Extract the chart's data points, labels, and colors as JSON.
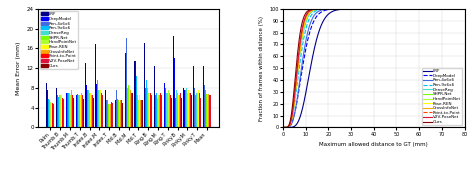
{
  "bar_categories": [
    "Palm",
    "Thumb.B",
    "Thumb.M",
    "Thumb.T",
    "Index.B",
    "Index.M",
    "Index.T",
    "Mid.B",
    "Mid.M",
    "Mid.T",
    "Ring.B",
    "Ring.M",
    "Ring.T",
    "Pinky.B",
    "Pinky.M",
    "Pinky.T",
    "Mean"
  ],
  "bar_methods": [
    "LRF",
    "DeepModel",
    "Ren-4x6x6",
    "Ren-9x6x6",
    "DenseReg",
    "SHPR-Net",
    "HandPointNet",
    "Pose-REN",
    "CrossInfoNet",
    "Point-to-Point",
    "V2V-PoseNet",
    "Ours"
  ],
  "bar_colors": [
    "#00008B",
    "#0000FF",
    "#4169E1",
    "#00BFFF",
    "#40E0D0",
    "#7CFC00",
    "#ADFF2F",
    "#FFFF00",
    "#FFA500",
    "#FF0000",
    "#DC143C",
    "#8B0000"
  ],
  "bar_data": [
    [
      9.0,
      7.5,
      6.5,
      5.8,
      5.5,
      5.5,
      5.2,
      5.0,
      5.0,
      5.0,
      4.8,
      4.5
    ],
    [
      8.0,
      6.8,
      6.5,
      6.2,
      6.5,
      6.5,
      6.5,
      6.5,
      6.0,
      6.0,
      5.8,
      5.5
    ],
    [
      9.5,
      7.0,
      7.0,
      7.0,
      7.0,
      7.0,
      6.5,
      7.0,
      7.5,
      6.5,
      6.5,
      6.0
    ],
    [
      9.0,
      6.5,
      6.8,
      6.5,
      6.5,
      6.5,
      6.5,
      6.5,
      7.0,
      6.0,
      6.5,
      5.8
    ],
    [
      13.0,
      8.5,
      9.0,
      7.5,
      7.5,
      7.0,
      6.5,
      7.0,
      6.5,
      6.5,
      6.5,
      6.0
    ],
    [
      16.8,
      8.8,
      14.8,
      9.5,
      7.5,
      7.0,
      7.5,
      7.5,
      7.0,
      7.0,
      6.5,
      6.0
    ],
    [
      7.5,
      5.5,
      5.5,
      5.5,
      5.0,
      4.8,
      4.8,
      5.0,
      4.8,
      5.2,
      5.0,
      5.0
    ],
    [
      8.0,
      5.5,
      7.5,
      5.8,
      5.5,
      5.5,
      5.2,
      5.5,
      5.5,
      5.5,
      5.5,
      5.0
    ],
    [
      18.0,
      15.0,
      18.0,
      10.0,
      8.0,
      8.5,
      7.5,
      8.0,
      7.5,
      7.5,
      7.0,
      7.0
    ],
    [
      13.5,
      13.5,
      12.0,
      10.5,
      6.5,
      6.5,
      5.5,
      6.5,
      5.5,
      5.5,
      5.5,
      5.5
    ],
    [
      17.0,
      11.5,
      8.0,
      9.5,
      8.0,
      7.0,
      7.0,
      7.0,
      7.0,
      7.0,
      6.5,
      6.5
    ],
    [
      12.5,
      9.0,
      6.5,
      7.0,
      7.5,
      6.0,
      6.5,
      6.5,
      6.5,
      7.0,
      6.5,
      6.0
    ],
    [
      12.5,
      9.0,
      8.0,
      7.5,
      7.0,
      7.0,
      7.5,
      6.5,
      7.0,
      6.5,
      6.5,
      6.0
    ],
    [
      18.5,
      14.0,
      6.0,
      6.5,
      7.5,
      7.0,
      7.0,
      6.5,
      6.5,
      6.0,
      7.0,
      6.0
    ],
    [
      8.0,
      7.5,
      7.5,
      7.5,
      8.0,
      7.5,
      7.0,
      7.5,
      7.0,
      7.0,
      7.0,
      6.5
    ],
    [
      12.5,
      8.5,
      8.0,
      6.5,
      7.0,
      6.5,
      7.0,
      7.5,
      6.0,
      7.0,
      6.0,
      5.8
    ],
    [
      12.5,
      9.0,
      8.5,
      7.5,
      7.0,
      6.8,
      6.8,
      6.8,
      6.8,
      6.5,
      6.5,
      6.0
    ]
  ],
  "bar_ylabel": "Mean Error (mm)",
  "bar_ylim": [
    0,
    24
  ],
  "bar_yticks": [
    0,
    4,
    8,
    12,
    16,
    20,
    24
  ],
  "curve_methods": [
    "LRF",
    "DeepModel",
    "Ren-4x6x6",
    "Ren-9x6x6",
    "DenseReg",
    "SHPR-Net",
    "HandPointNet",
    "Pose-REN",
    "CrossInfoNet",
    "Point-to-Point",
    "V2V-PoseNet",
    "Ours"
  ],
  "curve_colors": [
    "#00008B",
    "#0000FF",
    "#4169E1",
    "#00BFFF",
    "#40E0D0",
    "#7CFC00",
    "#ADFF2F",
    "#FFFF00",
    "#FFA500",
    "#FF4500",
    "#DC143C",
    "#8B0000"
  ],
  "curve_styles": [
    "solid",
    "dashed",
    "solid",
    "dashed",
    "solid",
    "solid",
    "solid",
    "solid",
    "solid",
    "dashed",
    "solid",
    "solid"
  ],
  "curve_xlabel": "Maximum allowed distance to GT (mm)",
  "curve_ylabel": "Fraction of frames within distance (%)",
  "curve_xlim": [
    0,
    80
  ],
  "curve_ylim": [
    0,
    100
  ],
  "curve_yticks": [
    0,
    10,
    20,
    30,
    40,
    50,
    60,
    70,
    80,
    90,
    100
  ],
  "curve_xticks": [
    0,
    10,
    20,
    30,
    40,
    50,
    60,
    70,
    80
  ],
  "curve_params": [
    {
      "mean": 12.5,
      "std": 4.0
    },
    {
      "mean": 9.0,
      "std": 3.5
    },
    {
      "mean": 8.5,
      "std": 3.0
    },
    {
      "mean": 7.5,
      "std": 2.8
    },
    {
      "mean": 7.0,
      "std": 2.5
    },
    {
      "mean": 6.8,
      "std": 2.4
    },
    {
      "mean": 6.8,
      "std": 2.3
    },
    {
      "mean": 6.8,
      "std": 2.3
    },
    {
      "mean": 6.8,
      "std": 2.2
    },
    {
      "mean": 6.5,
      "std": 2.2
    },
    {
      "mean": 6.5,
      "std": 2.1
    },
    {
      "mean": 6.0,
      "std": 2.0
    }
  ]
}
